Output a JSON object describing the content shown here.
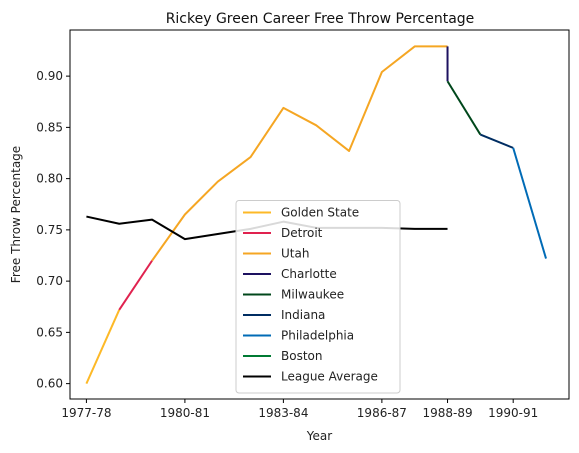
{
  "chart_data": {
    "type": "line",
    "title": "Rickey Green Career Free Throw Percentage",
    "xlabel": "Year",
    "ylabel": "Free Throw Percentage",
    "x_ticks": [
      "1977-78",
      "1980-81",
      "1983-84",
      "1986-87",
      "1988-89",
      "1990-91"
    ],
    "x_tick_positions": [
      0,
      3,
      6,
      9,
      11,
      13
    ],
    "ylim": [
      0.585,
      0.945
    ],
    "y_ticks": [
      0.6,
      0.65,
      0.7,
      0.75,
      0.8,
      0.85,
      0.9
    ],
    "grid": false,
    "legend_position": "lower-center",
    "series": [
      {
        "name": "Golden State",
        "color": "#FDB927",
        "x": [
          0,
          1
        ],
        "y": [
          0.6,
          0.672
        ]
      },
      {
        "name": "Detroit",
        "color": "#E0224F",
        "x": [
          1,
          2
        ],
        "y": [
          0.672,
          0.72
        ]
      },
      {
        "name": "Utah",
        "color": "#F5A623",
        "x": [
          2,
          3,
          4,
          5,
          6,
          7,
          8,
          9,
          10,
          11
        ],
        "y": [
          0.72,
          0.765,
          0.797,
          0.821,
          0.869,
          0.852,
          0.827,
          0.904,
          0.929,
          0.929
        ]
      },
      {
        "name": "Charlotte",
        "color": "#1D1160",
        "x": [
          11,
          11
        ],
        "y": [
          0.929,
          0.895
        ]
      },
      {
        "name": "Milwaukee",
        "color": "#00471B",
        "x": [
          11,
          12
        ],
        "y": [
          0.895,
          0.843
        ]
      },
      {
        "name": "Indiana",
        "color": "#002D62",
        "x": [
          12,
          13
        ],
        "y": [
          0.843,
          0.83
        ]
      },
      {
        "name": "Philadelphia",
        "color": "#006BB6",
        "x": [
          13,
          14
        ],
        "y": [
          0.83,
          0.722
        ]
      },
      {
        "name": "Boston",
        "color": "#007A33",
        "x": [],
        "y": []
      },
      {
        "name": "League Average",
        "color": "#000000",
        "x": [
          0,
          1,
          2,
          3,
          4,
          5,
          6,
          7,
          8,
          9,
          10,
          11
        ],
        "y": [
          0.763,
          0.756,
          0.76,
          0.741,
          0.746,
          0.751,
          0.758,
          0.752,
          0.752,
          0.752,
          0.751,
          0.751
        ]
      }
    ]
  }
}
